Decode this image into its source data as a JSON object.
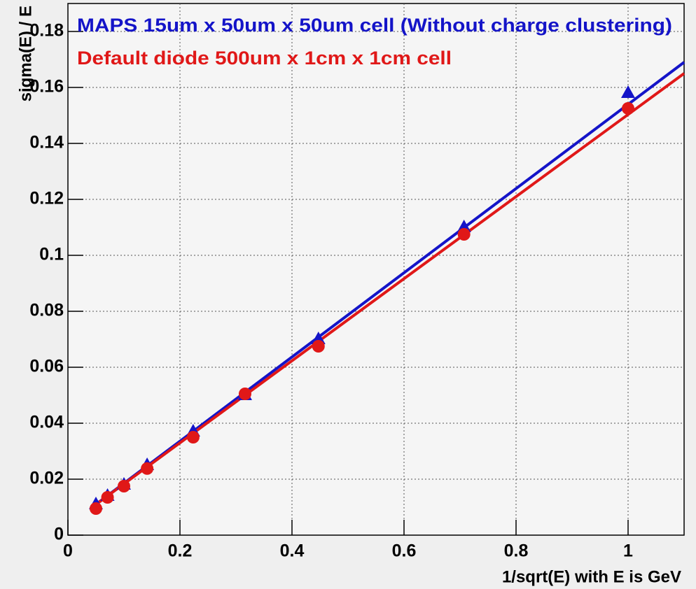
{
  "chart_data": {
    "type": "scatter",
    "xlabel": "1/sqrt(E) with E is GeV",
    "ylabel": "sigma(E) / E",
    "xlim": [
      0,
      1.1
    ],
    "ylim": [
      0,
      0.19
    ],
    "xticks": [
      0,
      0.2,
      0.4,
      0.6,
      0.8,
      1
    ],
    "yticks": [
      0,
      0.02,
      0.04,
      0.06,
      0.08,
      0.1,
      0.12,
      0.14,
      0.16,
      0.18
    ],
    "grid": true,
    "series": [
      {
        "name": "MAPS 15um x 50um x 50um cell (Without charge clustering)",
        "color": "#1414c8",
        "marker": "triangle",
        "x": [
          0.05,
          0.0707,
          0.1,
          0.1414,
          0.2236,
          0.3162,
          0.4472,
          0.7071,
          1
        ],
        "values": [
          0.011,
          0.014,
          0.018,
          0.025,
          0.037,
          0.05,
          0.07,
          0.11,
          0.158
        ],
        "fit": {
          "x": [
            0.04,
            1.1
          ],
          "values": [
            0.0095,
            0.169
          ]
        }
      },
      {
        "name": "Default diode 500um x 1cm x 1cm cell",
        "color": "#e01818",
        "marker": "circle",
        "x": [
          0.05,
          0.0707,
          0.1,
          0.1414,
          0.2236,
          0.3162,
          0.4472,
          0.7071,
          1
        ],
        "values": [
          0.0095,
          0.0135,
          0.0175,
          0.0238,
          0.035,
          0.0505,
          0.0675,
          0.1075,
          0.1525
        ],
        "fit": {
          "x": [
            0.04,
            1.1
          ],
          "values": [
            0.0095,
            0.165
          ]
        }
      }
    ]
  }
}
